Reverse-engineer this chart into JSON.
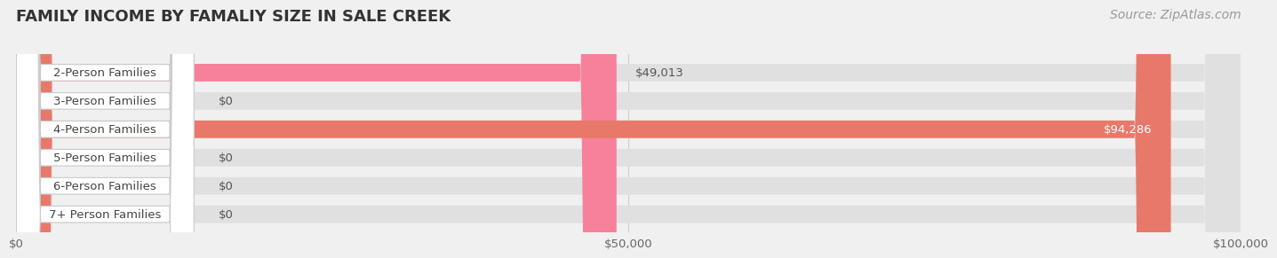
{
  "title": "FAMILY INCOME BY FAMALIY SIZE IN SALE CREEK",
  "source": "Source: ZipAtlas.com",
  "categories": [
    "2-Person Families",
    "3-Person Families",
    "4-Person Families",
    "5-Person Families",
    "6-Person Families",
    "7+ Person Families"
  ],
  "values": [
    49013,
    0,
    94286,
    0,
    0,
    0
  ],
  "bar_colors": [
    "#f7809a",
    "#f5c18a",
    "#e8796a",
    "#a8bfe8",
    "#c4a8d8",
    "#7ecec8"
  ],
  "value_labels": [
    "$49,013",
    "$0",
    "$94,286",
    "$0",
    "$0",
    "$0"
  ],
  "value_label_colors": [
    "#555555",
    "#555555",
    "#ffffff",
    "#555555",
    "#555555",
    "#555555"
  ],
  "xlim": [
    0,
    100000
  ],
  "xticks": [
    0,
    50000,
    100000
  ],
  "xticklabels": [
    "$0",
    "$50,000",
    "$100,000"
  ],
  "background_color": "#f0f0f0",
  "title_fontsize": 13,
  "source_fontsize": 10,
  "label_fontsize": 9.5,
  "value_fontsize": 9.5,
  "bar_height": 0.62
}
